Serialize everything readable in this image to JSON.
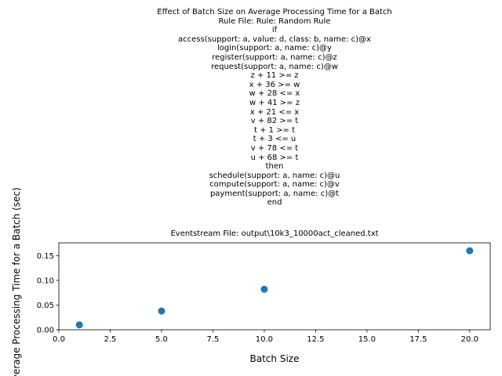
{
  "figure_text": {
    "title": "Effect of Batch Size on Average Processing Time for a Batch",
    "rule_lines": [
      "Rule File: Rule: Random Rule",
      "if",
      "access(support: a, value: d, class: b, name: c)@x",
      "login(support: a, name: c)@y",
      "register(support: a, name: c)@z",
      "request(support: a, name: c)@w",
      "z + 11 >= z",
      "x + 36 >= w",
      "w + 28 <= x",
      "w + 41 >= z",
      "x + 21 <= x",
      "v + 82 >= t",
      "t + 1 >= t",
      "t + 3 <= u",
      "v + 78 <= t",
      "u + 68 >= t",
      "then",
      "schedule(support: a, name: c)@u",
      "compute(support: a, name: c)@v",
      "payment(support: a, name: c)@t",
      "end"
    ]
  },
  "chart_data": {
    "type": "scatter",
    "title": "Eventstream File: output\\10k3_10000act_cleaned.txt",
    "xlabel": "Batch Size",
    "ylabel": "Average Processing Time for a Batch (sec)",
    "x": [
      1,
      5,
      10,
      20
    ],
    "y": [
      0.01,
      0.038,
      0.082,
      0.16
    ],
    "xlim": [
      0,
      21
    ],
    "ylim": [
      0,
      0.176
    ],
    "xticks": [
      0.0,
      2.5,
      5.0,
      7.5,
      10.0,
      12.5,
      15.0,
      17.5,
      20.0
    ],
    "xtick_labels": [
      "0.0",
      "2.5",
      "5.0",
      "7.5",
      "10.0",
      "12.5",
      "15.0",
      "17.5",
      "20.0"
    ],
    "yticks": [
      0.0,
      0.05,
      0.1,
      0.15
    ],
    "ytick_labels": [
      "0.00",
      "0.05",
      "0.10",
      "0.15"
    ],
    "marker_color": "#1f77b4",
    "grid": false,
    "legend": "none"
  }
}
